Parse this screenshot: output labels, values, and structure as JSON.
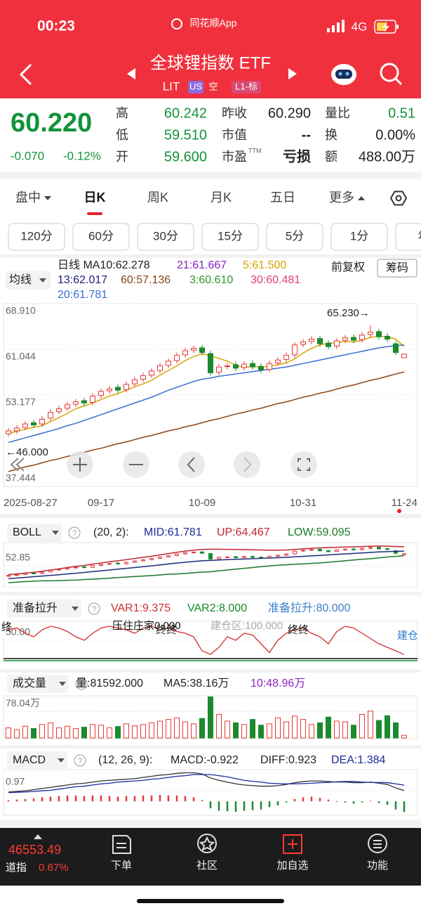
{
  "status": {
    "time": "00:23",
    "app": "同花顺App",
    "network": "4G"
  },
  "header": {
    "title": "全球锂指数 ETF",
    "symbol": "LIT",
    "tags": [
      "US",
      "空",
      "L1-标"
    ]
  },
  "quote": {
    "price": "60.220",
    "change": "-0.070",
    "pct": "-0.12%",
    "color": "#12933a",
    "fields": [
      {
        "label": "高",
        "value": "60.242",
        "color": "#12933a"
      },
      {
        "label": "低",
        "value": "59.510",
        "color": "#12933a"
      },
      {
        "label": "开",
        "value": "59.600",
        "color": "#12933a"
      },
      {
        "label": "昨收",
        "value": "60.290"
      },
      {
        "label": "市值",
        "value": "--"
      },
      {
        "label": "市盈",
        "sup": "TTM",
        "value": "亏损"
      },
      {
        "label": "量比",
        "value": "0.51",
        "color": "#12933a"
      },
      {
        "label": "换",
        "value": "0.00%"
      },
      {
        "label": "额",
        "value": "488.00万"
      }
    ]
  },
  "tabs": [
    "盘中",
    "日K",
    "周K",
    "月K",
    "五日",
    "更多"
  ],
  "periods": [
    "120分",
    "60分",
    "30分",
    "15分",
    "5分",
    "1分",
    "年"
  ],
  "ma_legend": {
    "button": "均线",
    "items": [
      {
        "text": "日线  MA10:62.278",
        "color": "#222222"
      },
      {
        "text": "21:61.667",
        "color": "#8b22c5"
      },
      {
        "text": "5:61.500",
        "color": "#d9a400"
      },
      {
        "text": "13:62.017",
        "color": "#1a1a80"
      },
      {
        "text": "60:57.136",
        "color": "#8b4513"
      },
      {
        "text": "3:60.610",
        "color": "#2a9a2a"
      },
      {
        "text": "30:60.481",
        "color": "#e0407a"
      },
      {
        "text": "20:61.781",
        "color": "#3a6fd0"
      }
    ],
    "adjust": "前复权",
    "chips": "筹码"
  },
  "chart_data": [
    {
      "type": "candlestick",
      "categories": [
        "2025-08-27",
        null,
        null,
        null,
        null,
        null,
        null,
        null,
        null,
        null,
        null,
        "09-17",
        null,
        null,
        null,
        null,
        null,
        null,
        null,
        null,
        null,
        null,
        null,
        "10-09",
        null,
        null,
        null,
        null,
        null,
        null,
        null,
        null,
        null,
        null,
        null,
        "10-31",
        null,
        null,
        null,
        null,
        null,
        null,
        null,
        null,
        null,
        null,
        null,
        "11-24"
      ],
      "open": [
        46.5,
        47.0,
        47.6,
        48.4,
        48.2,
        49.2,
        50.3,
        50.9,
        51.6,
        52.2,
        51.9,
        53.1,
        53.9,
        54.5,
        54.1,
        55.1,
        55.9,
        56.6,
        57.4,
        58.3,
        59.1,
        60.1,
        60.9,
        61.3,
        60.3,
        57.1,
        58.1,
        58.4,
        57.9,
        58.6,
        58.1,
        57.6,
        58.7,
        59.3,
        60.1,
        61.9,
        62.4,
        62.9,
        62.1,
        61.6,
        62.6,
        63.1,
        62.7,
        63.6,
        64.1,
        63.3,
        62.0,
        59.6
      ],
      "high": [
        47.5,
        48.0,
        48.7,
        48.9,
        49.5,
        50.7,
        51.3,
        52.0,
        52.5,
        52.7,
        53.5,
        54.3,
        54.7,
        55.0,
        55.5,
        56.3,
        57.0,
        57.8,
        58.7,
        59.5,
        60.5,
        61.3,
        61.7,
        61.8,
        60.8,
        58.5,
        58.7,
        58.9,
        59.0,
        59.1,
        58.6,
        59.1,
        59.7,
        60.5,
        62.3,
        62.8,
        63.3,
        63.4,
        62.6,
        63.0,
        63.5,
        63.6,
        64.0,
        65.23,
        64.6,
        63.8,
        62.5,
        60.242
      ],
      "low": [
        46.0,
        46.5,
        47.1,
        47.5,
        47.7,
        48.7,
        49.8,
        50.4,
        51.1,
        51.3,
        51.4,
        52.6,
        53.4,
        53.5,
        53.6,
        54.6,
        55.4,
        56.1,
        56.9,
        57.8,
        58.6,
        59.6,
        60.4,
        60.0,
        56.5,
        56.6,
        57.6,
        57.3,
        57.4,
        57.5,
        57.0,
        57.1,
        58.2,
        58.8,
        59.6,
        61.4,
        61.9,
        61.5,
        61.0,
        61.1,
        62.1,
        62.1,
        62.2,
        63.1,
        62.7,
        62.3,
        60.0,
        59.51
      ],
      "close": [
        47.0,
        47.5,
        48.2,
        48.0,
        49.0,
        50.2,
        50.8,
        51.5,
        52.0,
        51.8,
        53.0,
        53.8,
        54.2,
        54.0,
        55.0,
        55.8,
        56.5,
        57.3,
        58.2,
        59.0,
        60.0,
        60.8,
        61.2,
        60.5,
        57.0,
        58.0,
        58.2,
        57.8,
        58.5,
        58.0,
        57.5,
        58.6,
        59.2,
        60.0,
        61.8,
        62.3,
        62.8,
        62.0,
        61.5,
        62.5,
        63.0,
        62.6,
        63.5,
        64.0,
        63.2,
        62.8,
        60.5,
        60.22
      ],
      "up_color": "#e53935",
      "down_color": "#1b8a2e",
      "series": [
        {
          "color": "#d9a400",
          "values": [
            46.6,
            46.9,
            47.3,
            47.6,
            47.9,
            48.6,
            49.3,
            50.0,
            50.8,
            51.3,
            51.8,
            52.4,
            53.0,
            53.4,
            54.0,
            54.6,
            55.1,
            55.7,
            56.6,
            57.4,
            58.2,
            59.1,
            59.8,
            60.3,
            59.9,
            59.5,
            59.0,
            58.3,
            57.9,
            58.1,
            58.0,
            58.1,
            58.4,
            58.7,
            59.4,
            60.4,
            61.2,
            61.8,
            62.1,
            62.2,
            62.4,
            62.3,
            62.6,
            63.1,
            63.3,
            63.2,
            62.8,
            61.5
          ]
        },
        {
          "color": "#3a6fd0",
          "values": [
            45.0,
            45.4,
            45.8,
            46.2,
            46.6,
            47.0,
            47.4,
            47.9,
            48.3,
            48.8,
            49.3,
            49.8,
            50.3,
            50.8,
            51.3,
            51.8,
            52.3,
            52.8,
            53.4,
            54.0,
            54.5,
            55.0,
            55.5,
            55.9,
            56.1,
            56.4,
            56.6,
            56.8,
            57.0,
            57.2,
            57.4,
            57.6,
            57.8,
            58.0,
            58.3,
            58.6,
            58.9,
            59.2,
            59.5,
            59.8,
            60.1,
            60.4,
            60.7,
            61.0,
            61.3,
            61.5,
            61.7,
            61.781
          ]
        },
        {
          "color": "#8b4513",
          "values": [
            40.0,
            40.4,
            40.8,
            41.1,
            41.5,
            41.9,
            42.2,
            42.6,
            42.9,
            43.3,
            43.7,
            44.0,
            44.4,
            44.8,
            45.1,
            45.5,
            45.9,
            46.2,
            46.6,
            47.0,
            47.3,
            47.7,
            48.0,
            48.4,
            48.8,
            49.1,
            49.5,
            49.9,
            50.2,
            50.6,
            50.9,
            51.3,
            51.7,
            52.0,
            52.4,
            52.8,
            53.1,
            53.5,
            53.8,
            54.2,
            54.6,
            54.9,
            55.3,
            55.7,
            56.0,
            56.4,
            56.8,
            57.136
          ]
        }
      ],
      "ylim": [
        37.444,
        68.91
      ],
      "yticks": [
        {
          "value": 68.91,
          "label": "68.910"
        },
        {
          "value": 61.044,
          "label": "61.044"
        },
        53.177,
        37.444
      ],
      "grid": true,
      "annotations": [
        "65.230→",
        "←46.000"
      ]
    },
    {
      "type": "boll",
      "title": "BOLL",
      "params": "(20, 2):",
      "items": [
        {
          "text": "MID:61.781",
          "color": "#1c2a9a"
        },
        {
          "text": "UP:64.467",
          "color": "#c0262d"
        },
        {
          "text": "LOW:59.095",
          "color": "#1a7a2a"
        }
      ],
      "series": [
        {
          "color": "#c0262d",
          "values": [
            47.5,
            47.9,
            48.4,
            48.9,
            49.5,
            50.3,
            51.0,
            51.8,
            52.5,
            53.1,
            53.9,
            54.6,
            55.3,
            55.9,
            56.6,
            57.3,
            58.0,
            58.7,
            59.5,
            60.3,
            61.1,
            61.8,
            62.4,
            62.8,
            63.0,
            63.0,
            62.9,
            62.8,
            62.7,
            62.6,
            62.5,
            62.4,
            62.4,
            62.5,
            62.8,
            63.2,
            63.5,
            63.8,
            64.0,
            64.1,
            64.3,
            64.4,
            64.6,
            64.8,
            64.9,
            64.8,
            64.6,
            64.467
          ]
        },
        {
          "color": "#1a7a2a",
          "values": [
            42.5,
            42.9,
            43.2,
            43.5,
            43.7,
            43.7,
            43.8,
            44.0,
            44.1,
            44.5,
            44.7,
            45.0,
            45.3,
            45.7,
            46.0,
            46.3,
            46.6,
            46.9,
            47.3,
            47.7,
            47.9,
            48.2,
            48.6,
            49.0,
            49.2,
            49.8,
            50.3,
            50.8,
            51.3,
            51.8,
            52.3,
            52.8,
            53.2,
            53.5,
            53.8,
            54.0,
            54.3,
            54.6,
            55.0,
            55.5,
            55.9,
            56.4,
            56.8,
            57.2,
            57.7,
            58.2,
            58.6,
            59.095
          ]
        }
      ],
      "mid_color": "#1c2a7a",
      "ylim": [
        40,
        67
      ],
      "yticks": [
        52.85
      ]
    },
    {
      "type": "oscillator",
      "title": "准备拉升",
      "items": [
        {
          "text": "VAR1:9.375",
          "color": "#d0302f"
        },
        {
          "text": "VAR2:8.000",
          "color": "#1a8a2a"
        },
        {
          "text": "准备拉升:80.000",
          "color": "#3a7fc8"
        }
      ],
      "series": [
        {
          "color": "#d0302f",
          "values": [
            80,
            85,
            70,
            60,
            80,
            90,
            85,
            75,
            60,
            50,
            70,
            85,
            90,
            85,
            80,
            70,
            85,
            90,
            80,
            85,
            75,
            70,
            60,
            20,
            10,
            30,
            60,
            50,
            70,
            65,
            40,
            15,
            50,
            70,
            80,
            85,
            70,
            60,
            40,
            75,
            90,
            85,
            70,
            55,
            40,
            30,
            20,
            9.375
          ]
        }
      ],
      "ylim": [
        0,
        100
      ],
      "yticks": [
        {
          "value": 50,
          "label": "50.00"
        }
      ],
      "annotations": [
        "终",
        "压住庄家0.000",
        "建仓区:100.000",
        "终终",
        "终终",
        "建仓"
      ]
    },
    {
      "type": "volume",
      "title": "成交量",
      "items": [
        {
          "text": "量:81592.000",
          "color": "#222222"
        },
        {
          "text": "MA5:38.16万",
          "color": "#222222"
        },
        {
          "text": "10:48.96万",
          "color": "#8b22c5"
        }
      ],
      "values": [
        30,
        25,
        35,
        28,
        40,
        45,
        30,
        35,
        28,
        32,
        40,
        38,
        30,
        34,
        42,
        36,
        40,
        45,
        50,
        55,
        60,
        48,
        42,
        58,
        122,
        70,
        50,
        45,
        40,
        55,
        38,
        42,
        60,
        48,
        65,
        55,
        40,
        45,
        62,
        50,
        48,
        38,
        70,
        80,
        52,
        66,
        45,
        8.16
      ],
      "ylim": [
        0,
        125
      ],
      "yticks": [
        {
          "value": 78.04,
          "label": "78.04万"
        }
      ]
    },
    {
      "type": "macd",
      "title": "MACD",
      "params": "(12, 26, 9):",
      "items": [
        {
          "text": "MACD:-0.922",
          "color": "#222222"
        },
        {
          "text": "DIFF:0.923",
          "color": "#222222"
        },
        {
          "text": "DEA:1.384",
          "color": "#1c2a9a"
        }
      ],
      "values": [
        0.1,
        0.15,
        0.2,
        0.25,
        0.35,
        0.4,
        0.45,
        0.5,
        0.5,
        0.45,
        0.5,
        0.5,
        0.45,
        0.4,
        0.45,
        0.45,
        0.5,
        0.5,
        0.55,
        0.5,
        0.5,
        0.45,
        0.35,
        0.1,
        -0.6,
        -0.8,
        -0.85,
        -0.9,
        -0.8,
        -0.75,
        -0.7,
        -0.5,
        -0.35,
        -0.1,
        0.2,
        0.35,
        0.4,
        0.3,
        0.15,
        -0.05,
        -0.1,
        -0.2,
        -0.1,
        0.05,
        -0.15,
        -0.3,
        -0.7,
        -0.922
      ],
      "series": [
        {
          "color": "#333333",
          "values": [
            0.8,
            0.85,
            0.9,
            1.0,
            1.1,
            1.2,
            1.3,
            1.4,
            1.5,
            1.55,
            1.65,
            1.75,
            1.8,
            1.85,
            1.9,
            1.95,
            2.05,
            2.15,
            2.25,
            2.3,
            2.4,
            2.45,
            2.45,
            2.35,
            2.0,
            1.8,
            1.65,
            1.5,
            1.4,
            1.35,
            1.3,
            1.3,
            1.35,
            1.45,
            1.6,
            1.7,
            1.75,
            1.75,
            1.7,
            1.65,
            1.65,
            1.6,
            1.6,
            1.65,
            1.55,
            1.45,
            1.15,
            0.923
          ]
        },
        {
          "color": "#1c2a9a",
          "values": [
            0.75,
            0.78,
            0.8,
            0.85,
            0.9,
            0.95,
            1.05,
            1.15,
            1.25,
            1.3,
            1.4,
            1.5,
            1.55,
            1.65,
            1.7,
            1.75,
            1.8,
            1.9,
            1.95,
            2.05,
            2.15,
            2.2,
            2.3,
            2.3,
            2.3,
            2.2,
            2.1,
            1.95,
            1.8,
            1.72,
            1.65,
            1.55,
            1.52,
            1.5,
            1.5,
            1.52,
            1.55,
            1.6,
            1.62,
            1.68,
            1.7,
            1.7,
            1.65,
            1.62,
            1.62,
            1.6,
            1.5,
            1.384
          ]
        }
      ],
      "ylim": [
        -1.2,
        2.6
      ],
      "yticks": [
        0.97
      ]
    }
  ],
  "bottom": {
    "index_value": "46553.49",
    "index_name": "道指",
    "index_pct": "0.67%",
    "items": [
      "下单",
      "社区",
      "加自选",
      "功能"
    ]
  }
}
